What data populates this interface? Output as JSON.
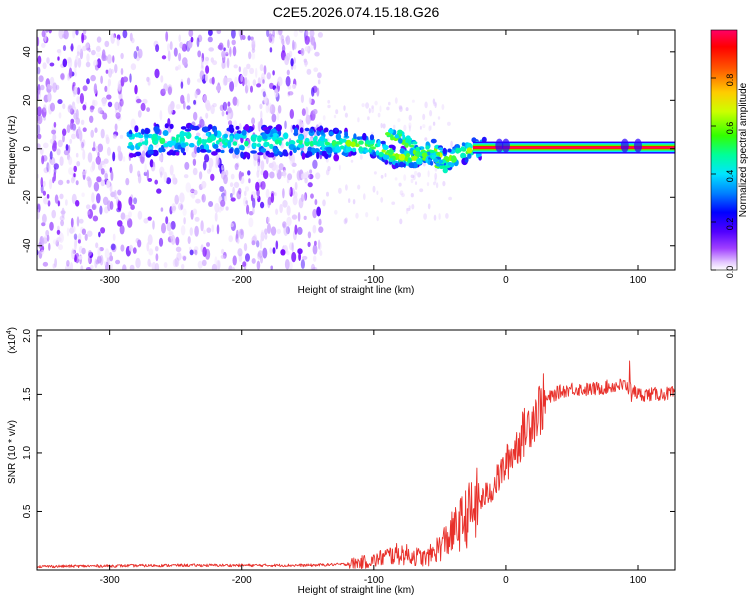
{
  "figure": {
    "title": "C2E5.2026.074.15.18.G26"
  },
  "chart_data": [
    {
      "type": "heatmap",
      "xlabel": "Height of straight line (km)",
      "ylabel": "Frequency (Hz)",
      "xlim": [
        -355,
        128
      ],
      "ylim": [
        -50,
        49
      ],
      "xticks": [
        -300,
        -200,
        -100,
        0,
        100
      ],
      "yticks": [
        -40,
        -20,
        0,
        20,
        40
      ],
      "colorbar": {
        "label": "Normalized spectral amplitude",
        "range": [
          0,
          1
        ],
        "ticks": [
          "0.0",
          "0.2",
          "0.4",
          "0.6",
          "0.8"
        ],
        "colors": [
          "#ffffff",
          "#d9b3ff",
          "#8000ff",
          "#2a00ff",
          "#0060ff",
          "#00e5ff",
          "#00ff80",
          "#80ff00",
          "#ffff00",
          "#ff8000",
          "#ff0000",
          "#ff0060"
        ]
      },
      "ridge": {
        "x": [
          -280,
          -250,
          -200,
          -160,
          -120,
          -100,
          -85,
          -70,
          -55,
          -45,
          -35,
          -25,
          -15,
          -5,
          0,
          10,
          50,
          90,
          128
        ],
        "y": [
          3,
          4,
          3,
          3,
          2,
          1,
          -3,
          -4,
          0,
          -5,
          -2,
          0,
          0,
          1,
          2,
          0.5,
          0.3,
          0.5,
          0.5
        ]
      },
      "secondary_ridge": {
        "x": [
          -90,
          -80,
          -70,
          -60,
          -50,
          -42
        ],
        "y": [
          6,
          5,
          1,
          -3,
          -6,
          -8
        ]
      },
      "carrier_band": {
        "x_start": -25,
        "x_end": 128,
        "y": 0.5
      }
    },
    {
      "type": "line",
      "xlabel": "Height of straight line (km)",
      "ylabel": "SNR (10 * v/v)",
      "exponent_label": "(x10",
      "exponent": "4",
      "exponent_close": ")",
      "xlim": [
        -355,
        128
      ],
      "ylim": [
        0,
        2.05
      ],
      "xticks": [
        -300,
        -200,
        -100,
        0,
        100
      ],
      "yticks": [
        0.5,
        1.0,
        1.5,
        2.0
      ],
      "ytick_labels": [
        "0.5",
        "1.0",
        "1.5",
        "2.0"
      ],
      "series": [
        {
          "color": "#e8302a",
          "x": [
            -355,
            -300,
            -250,
            -200,
            -150,
            -120,
            -100,
            -90,
            -80,
            -70,
            -60,
            -50,
            -40,
            -30,
            -20,
            -10,
            0,
            10,
            20,
            30,
            40,
            50,
            60,
            70,
            80,
            90,
            100,
            110,
            128
          ],
          "y": [
            0.03,
            0.035,
            0.04,
            0.04,
            0.04,
            0.05,
            0.08,
            0.12,
            0.14,
            0.12,
            0.1,
            0.2,
            0.32,
            0.45,
            0.58,
            0.7,
            0.9,
            1.1,
            1.3,
            1.45,
            1.52,
            1.55,
            1.54,
            1.55,
            1.57,
            1.58,
            1.5,
            1.5,
            1.51
          ]
        }
      ]
    }
  ]
}
